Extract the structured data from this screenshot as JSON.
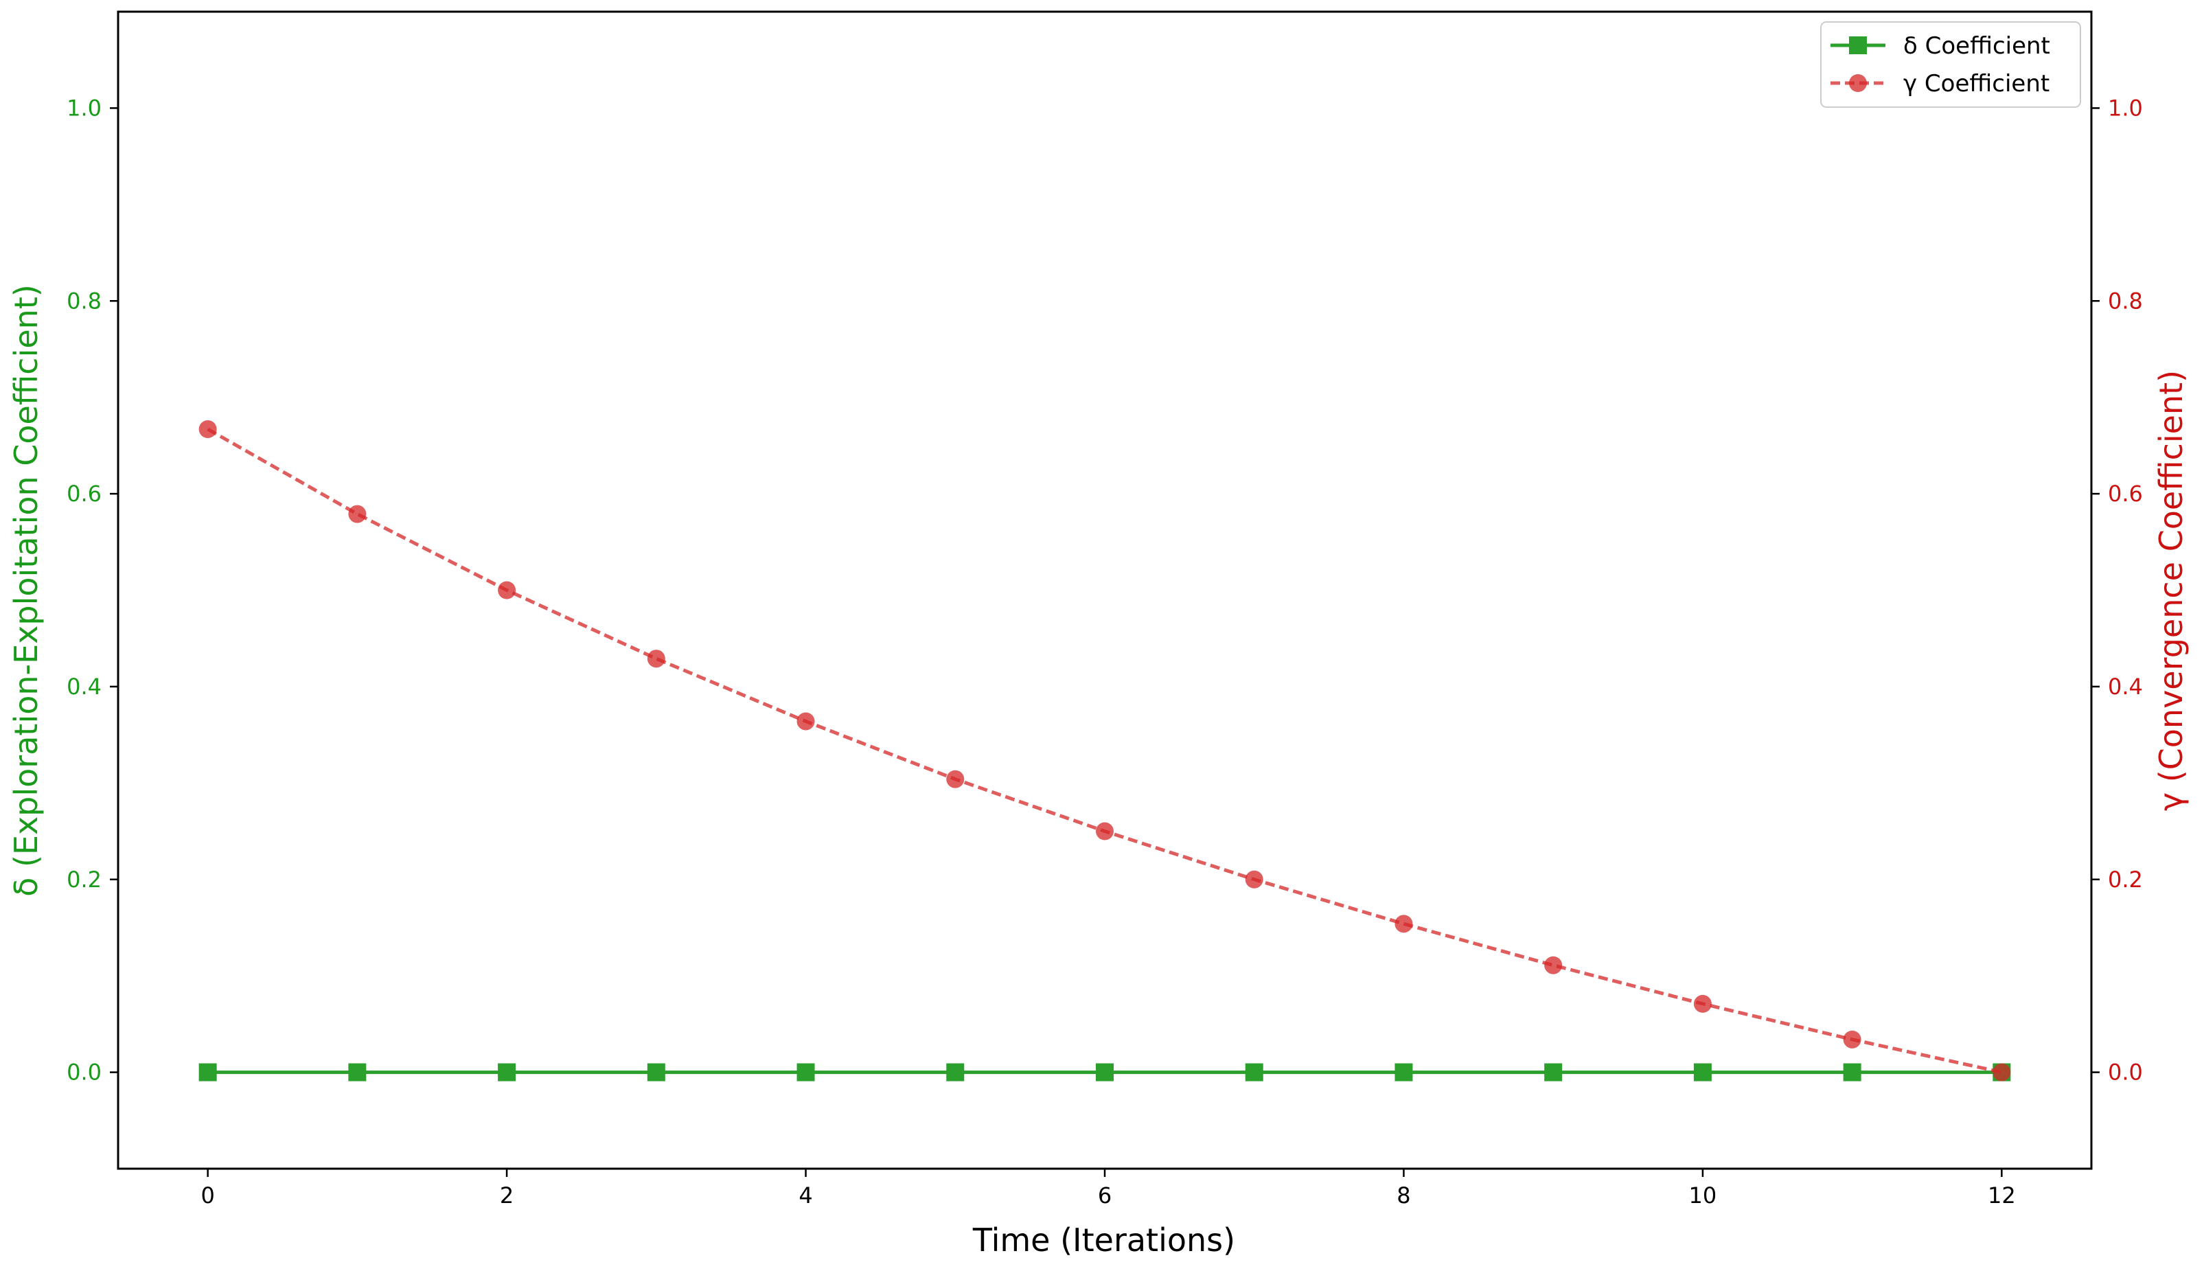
{
  "chart_data": {
    "type": "line",
    "xlabel": "Time (Iterations)",
    "ylabel_left": "δ (Exploration-Exploitation Coefficient)",
    "ylabel_right": "γ (Convergence Coefficient)",
    "xlim": [
      -0.6,
      12.6
    ],
    "ylim_left": [
      -0.1,
      1.1
    ],
    "ylim_right": [
      -0.1,
      1.1
    ],
    "x_ticks": [
      0,
      2,
      4,
      6,
      8,
      10,
      12
    ],
    "x_tick_labels": [
      "0",
      "2",
      "4",
      "6",
      "8",
      "10",
      "12"
    ],
    "y_ticks_left": [
      0.0,
      0.2,
      0.4,
      0.6,
      0.8,
      1.0
    ],
    "y_tick_labels_left": [
      "0.0",
      "0.2",
      "0.4",
      "0.6",
      "0.8",
      "1.0"
    ],
    "y_ticks_right": [
      0.0,
      0.2,
      0.4,
      0.6,
      0.8,
      1.0
    ],
    "y_tick_labels_right": [
      "0.0",
      "0.2",
      "0.4",
      "0.6",
      "0.8",
      "1.0"
    ],
    "grid": false,
    "legend_position": "top-right",
    "x": [
      0,
      1,
      2,
      3,
      4,
      5,
      6,
      7,
      8,
      9,
      10,
      11,
      12
    ],
    "series": [
      {
        "name": "δ Coefficient",
        "axis": "left",
        "color": "#2ca02c",
        "line_style": "solid",
        "marker": "square",
        "values": [
          0,
          0,
          0,
          0,
          0,
          0,
          0,
          0,
          0,
          0,
          0,
          0,
          0
        ]
      },
      {
        "name": "γ Coefficient",
        "axis": "right",
        "color": "#d62728",
        "line_style": "dashed",
        "marker": "circle",
        "values": [
          0.667,
          0.579,
          0.5,
          0.429,
          0.364,
          0.304,
          0.25,
          0.2,
          0.154,
          0.111,
          0.071,
          0.034,
          0.0
        ]
      }
    ],
    "left_axis_color": "#1a9a1a",
    "right_axis_color": "#cc1111"
  }
}
